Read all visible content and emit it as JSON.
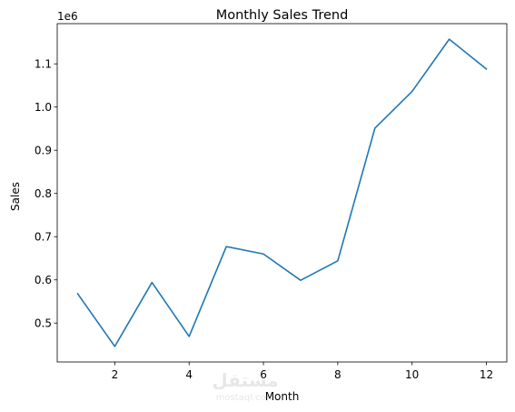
{
  "chart_data": {
    "type": "line",
    "title": "Monthly Sales Trend",
    "xlabel": "Month",
    "ylabel": "Sales",
    "y_offset_text": "1e6",
    "x": [
      1,
      2,
      3,
      4,
      5,
      6,
      7,
      8,
      9,
      10,
      11,
      12
    ],
    "series": [
      {
        "values": [
          568000,
          446000,
          594000,
          469000,
          677000,
          660000,
          599000,
          644000,
          951000,
          1036000,
          1157000,
          1088000
        ],
        "color": "#1f77b4"
      }
    ],
    "xlim": [
      0.45,
      12.55
    ],
    "ylim": [
      410000,
      1193000
    ],
    "xticks": [
      2,
      4,
      6,
      8,
      10,
      12
    ],
    "xtick_labels": [
      "2",
      "4",
      "6",
      "8",
      "10",
      "12"
    ],
    "yticks": [
      500000,
      600000,
      700000,
      800000,
      900000,
      1000000,
      1100000
    ],
    "ytick_labels": [
      "0.5",
      "0.6",
      "0.7",
      "0.8",
      "0.9",
      "1.0",
      "1.1"
    ],
    "grid": false,
    "legend": "none"
  },
  "watermark": {
    "main": "مستقل",
    "sub": "mostaql.com"
  }
}
